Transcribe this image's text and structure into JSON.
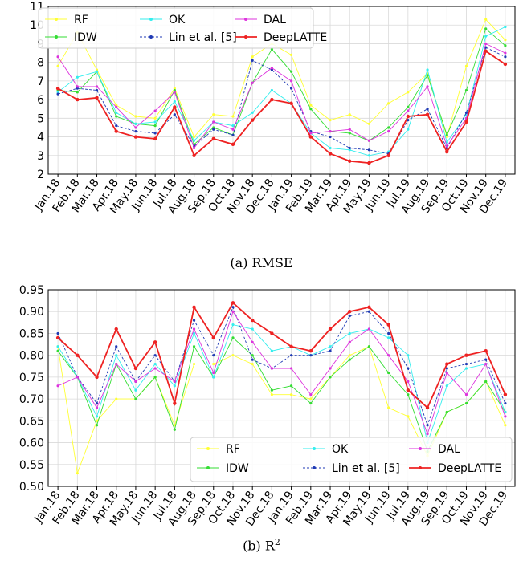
{
  "chart_data": [
    {
      "type": "line",
      "caption": "(a)  RMSE",
      "xlabel": "",
      "ylabel": "",
      "ylim": [
        2,
        11
      ],
      "yticks": [
        2,
        3,
        4,
        5,
        6,
        7,
        8,
        9,
        10,
        11
      ],
      "grid": true,
      "legend_placement": "top",
      "categories": [
        "Jan.18",
        "Feb.18",
        "Mar.18",
        "Apr.18",
        "May.18",
        "Jun.18",
        "Jul.18",
        "Aug.18",
        "Sep.18",
        "Oct.18",
        "Nov.18",
        "Dec.18",
        "Jan.19",
        "Feb.19",
        "Mar.19",
        "Apr.19",
        "May.19",
        "Jun.19",
        "Jul.19",
        "Aug.19",
        "Sep.19",
        "Oct.19",
        "Nov.19",
        "Dec.19"
      ],
      "series": [
        {
          "name": "RF",
          "color": "#ffff33",
          "values": [
            7.8,
            9.6,
            7.6,
            5.7,
            5.1,
            5.0,
            6.6,
            4.0,
            5.2,
            5.1,
            8.3,
            9.0,
            8.4,
            5.7,
            4.9,
            5.2,
            4.7,
            5.8,
            6.4,
            7.4,
            4.0,
            7.8,
            10.3,
            9.2
          ]
        },
        {
          "name": "IDW",
          "color": "#33dd33",
          "values": [
            6.5,
            6.4,
            7.5,
            5.1,
            4.7,
            4.6,
            6.5,
            3.6,
            4.5,
            4.1,
            6.9,
            8.7,
            7.5,
            5.5,
            4.3,
            4.2,
            3.8,
            4.5,
            5.6,
            7.3,
            4.1,
            6.5,
            9.8,
            8.9
          ]
        },
        {
          "name": "OK",
          "color": "#33eeee",
          "values": [
            6.4,
            7.2,
            7.5,
            5.3,
            4.7,
            4.8,
            5.9,
            3.8,
            4.8,
            4.6,
            5.3,
            6.5,
            5.8,
            4.2,
            3.4,
            3.3,
            3.0,
            3.2,
            4.4,
            7.6,
            3.7,
            5.2,
            9.4,
            9.9
          ]
        },
        {
          "name": "Lin et al. [5]",
          "color": "#1f3ab4",
          "values": [
            6.3,
            6.6,
            6.5,
            4.6,
            4.3,
            4.2,
            5.2,
            3.5,
            4.4,
            4.1,
            8.1,
            7.6,
            6.6,
            4.3,
            4.0,
            3.4,
            3.3,
            3.1,
            4.9,
            5.5,
            3.4,
            5.3,
            8.8,
            8.3
          ]
        },
        {
          "name": "DAL",
          "color": "#dd33dd",
          "values": [
            8.3,
            6.7,
            6.7,
            5.6,
            4.5,
            5.4,
            6.4,
            3.4,
            4.8,
            4.4,
            6.9,
            7.7,
            7.0,
            4.2,
            4.3,
            4.4,
            3.8,
            4.3,
            5.4,
            6.7,
            3.5,
            5.0,
            9.0,
            8.5
          ]
        },
        {
          "name": "DeepLATTE",
          "color": "#ee2222",
          "values": [
            6.6,
            6.0,
            6.1,
            4.3,
            4.0,
            3.9,
            5.6,
            3.0,
            3.9,
            3.6,
            4.9,
            6.0,
            5.8,
            4.0,
            3.1,
            2.7,
            2.6,
            3.0,
            5.1,
            5.2,
            3.2,
            4.8,
            8.6,
            7.9
          ]
        }
      ]
    },
    {
      "type": "line",
      "caption": "(b)  R",
      "caption_sup": "2",
      "xlabel": "",
      "ylabel": "",
      "ylim": [
        0.5,
        0.95
      ],
      "yticks": [
        "0.50",
        "0.55",
        "0.60",
        "0.65",
        "0.70",
        "0.75",
        "0.80",
        "0.85",
        "0.90",
        "0.95"
      ],
      "grid": true,
      "legend_placement": "bottom-right",
      "categories": [
        "Jan.18",
        "Feb.18",
        "Mar.18",
        "Apr.18",
        "May.18",
        "Jun.18",
        "Jul.18",
        "Aug.18",
        "Sep.18",
        "Oct.18",
        "Nov.18",
        "Dec.18",
        "Jan.19",
        "Feb.19",
        "Mar.19",
        "Apr.19",
        "May.19",
        "Jun.19",
        "Jul.19",
        "Aug.19",
        "Sep.19",
        "Oct.19",
        "Nov.19",
        "Dec.19"
      ],
      "series": [
        {
          "name": "RF",
          "color": "#ffff33",
          "values": [
            0.82,
            0.53,
            0.65,
            0.7,
            0.7,
            0.75,
            0.64,
            0.78,
            0.78,
            0.8,
            0.78,
            0.71,
            0.71,
            0.7,
            0.75,
            0.8,
            0.82,
            0.68,
            0.66,
            0.57,
            0.67,
            0.69,
            0.74,
            0.64
          ]
        },
        {
          "name": "IDW",
          "color": "#33dd33",
          "values": [
            0.81,
            0.75,
            0.64,
            0.78,
            0.7,
            0.75,
            0.63,
            0.82,
            0.75,
            0.84,
            0.8,
            0.72,
            0.73,
            0.69,
            0.75,
            0.79,
            0.82,
            0.76,
            0.71,
            0.58,
            0.67,
            0.69,
            0.74,
            0.67
          ]
        },
        {
          "name": "OK",
          "color": "#33eeee",
          "values": [
            0.82,
            0.75,
            0.66,
            0.8,
            0.72,
            0.78,
            0.73,
            0.85,
            0.75,
            0.87,
            0.86,
            0.81,
            0.82,
            0.8,
            0.82,
            0.85,
            0.86,
            0.84,
            0.8,
            0.6,
            0.73,
            0.77,
            0.78,
            0.67
          ]
        },
        {
          "name": "Lin et al. [5]",
          "color": "#1f3ab4",
          "values": [
            0.85,
            0.75,
            0.69,
            0.82,
            0.74,
            0.8,
            0.74,
            0.88,
            0.8,
            0.91,
            0.79,
            0.77,
            0.8,
            0.8,
            0.81,
            0.89,
            0.9,
            0.85,
            0.77,
            0.64,
            0.77,
            0.78,
            0.79,
            0.69
          ]
        },
        {
          "name": "DAL",
          "color": "#dd33dd",
          "values": [
            0.73,
            0.75,
            0.68,
            0.78,
            0.74,
            0.77,
            0.74,
            0.86,
            0.76,
            0.9,
            0.83,
            0.77,
            0.77,
            0.71,
            0.77,
            0.83,
            0.86,
            0.8,
            0.74,
            0.62,
            0.76,
            0.71,
            0.78,
            0.66
          ]
        },
        {
          "name": "DeepLATTE",
          "color": "#ee2222",
          "values": [
            0.84,
            0.8,
            0.75,
            0.86,
            0.77,
            0.83,
            0.69,
            0.91,
            0.84,
            0.92,
            0.88,
            0.85,
            0.82,
            0.81,
            0.86,
            0.9,
            0.91,
            0.87,
            0.72,
            0.68,
            0.78,
            0.8,
            0.81,
            0.71
          ]
        }
      ]
    }
  ]
}
